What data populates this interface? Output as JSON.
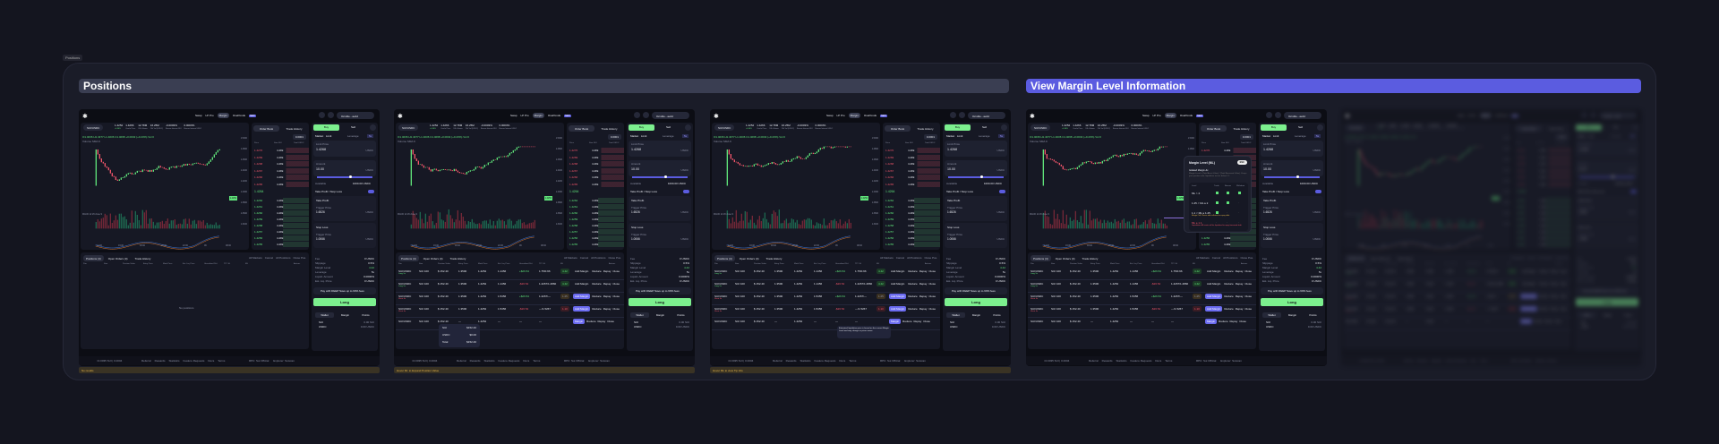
{
  "frame_label": "Positions",
  "sections": [
    {
      "title": "Positions"
    },
    {
      "title": "View Margin Level Information"
    }
  ],
  "app": {
    "nav": [
      "Swap",
      "LP Pro",
      "Margin",
      "OnePonds"
    ],
    "nav_badge": "NEW",
    "wallet": "0x1d2e...ae4d",
    "pair": "SUI/USDC",
    "pair_badge": "5x",
    "stats": [
      {
        "v": "1.4252",
        "l": "+0.56%"
      },
      {
        "v": "1.4266",
        "l": "Oracle Price"
      },
      {
        "v": "12.78M",
        "l": "24h Volume"
      },
      {
        "v": "16.25M",
        "l": "24h Vol (USDC)"
      },
      {
        "v": "-0.0003%",
        "l": "Borrow Interest SUI"
      },
      {
        "v": "0.0003%",
        "l": "Borrow Interest USDC"
      }
    ],
    "ohlc": "O1.4036 H1.4377 L1.4036 C1.4068 +0.0032 (+0.23%) Vol 0",
    "volume_label": "Volume SMA 9",
    "macd_label": "MACD 12 26 close 9",
    "price_axis": [
      "1.5000",
      "1.4800",
      "1.4600",
      "1.4400",
      "1.4200",
      "1.4000",
      "1.3800",
      "1.3600",
      "1.3400"
    ],
    "last_price": "1.4252",
    "time_axis": [
      "14:00",
      "16:00",
      "18:00",
      "20:00",
      "22:00",
      "06",
      "08:00"
    ],
    "orderbook": {
      "tabs": [
        "Order Book",
        "Trade History"
      ],
      "step": "0.0001",
      "cols": [
        "Price",
        "Size SUI",
        "Total USDC"
      ],
      "asks": [
        "1.4270",
        "1.4269",
        "1.4268",
        "1.4267",
        "1.4266",
        "1.4265"
      ],
      "mid": "1.4264",
      "bids": [
        "1.4262",
        "1.4261",
        "1.4260",
        "1.4259",
        "1.4258",
        "1.4257",
        "1.4256",
        "1.4255"
      ],
      "size": "4.28k"
    },
    "order": {
      "buy": "Buy",
      "sell": "Sell",
      "types": [
        "Market",
        "Limit"
      ],
      "leverage_label": "Leverage",
      "leverage": "5x",
      "limit_label": "Limit Price",
      "limit": "1.4268",
      "unit": "USDC",
      "amount_label": "Amount",
      "amount": "10.00",
      "available_label": "Available",
      "available": "1000.00 USDC",
      "tpsl_label": "Take Profit / Stop Loss",
      "tp": "Take Profit",
      "sl": "Stop Loss",
      "trigger": "Trigger Price",
      "tp_price": "1.6526",
      "sl_price": "1.0066",
      "summary": [
        [
          "Fee",
          "0 USDC"
        ],
        [
          "Slippage",
          "0.5%"
        ],
        [
          "Margin Level",
          "4.42"
        ],
        [
          "Leverage",
          "5x"
        ],
        [
          "Liquid. Amount",
          "0.0000%"
        ],
        [
          "Est. Liq. Price",
          "0 USDC"
        ]
      ],
      "promo": "Pay with DEEP Save up to 60% fees",
      "long": "Long",
      "acct_tabs": [
        "Wallet",
        "Margin",
        "Points"
      ],
      "acct": [
        [
          "SUI",
          "0.00 SUI"
        ],
        [
          "USDC",
          "0.00 USDC"
        ]
      ]
    },
    "bottom": {
      "tabs": [
        "Positions (4)",
        "Open Orders (4)",
        "Trade History"
      ],
      "actions": [
        "All Markets",
        "Cancel",
        "All Positions",
        "Close Pos."
      ],
      "cols": [
        "Pair",
        "Size",
        "Position Value",
        "Entry Price",
        "Mark Price",
        "Est. Liq. Price",
        "Unrealized PnL",
        "TP / SL",
        "ML",
        "Actions"
      ],
      "rows": [
        {
          "pair": "SUI/USDC",
          "side": "Long 5x",
          "size": "SUI 100",
          "value": "$ 152.40",
          "entry": "1.3500",
          "mark": "1.4252",
          "liq": "1.1456",
          "pnl": "+$26.54",
          "tpsl": "1.75/0.96",
          "ml": "4.42",
          "act": "Add Margin"
        },
        {
          "pair": "SUI/USDC",
          "side": "Long 5x",
          "size": "SUI 100",
          "value": "$ 152.40",
          "entry": "1.3500",
          "mark": "1.4252",
          "liq": "1.1456",
          "pnl": "-$26.54",
          "tpsl": "1.4267/1.2860",
          "ml": "4.42",
          "act": "Add Margin"
        },
        {
          "pair": "SUI/USDC",
          "side": "Short 5x",
          "size": "SUI 100",
          "value": "$ 152.40",
          "entry": "1.3500",
          "mark": "1.4252",
          "liq": "1.5456",
          "pnl": "+$26.54",
          "tpsl": "1.4267/—",
          "ml": "1.25",
          "act": "Add Margin"
        },
        {
          "pair": "SUI/USDC",
          "side": "Short 5x",
          "size": "SUI 100",
          "value": "$ 152.40",
          "entry": "1.3500",
          "mark": "1.4252",
          "liq": "1.5456",
          "pnl": "-$26.54",
          "tpsl": "—/1.5267",
          "ml": "1.10",
          "act": "Add Margin"
        },
        {
          "pair": "SUI/USDC",
          "side": "",
          "size": "SUI 100",
          "value": "$ 152.40",
          "entry": "—",
          "mark": "1.4252",
          "liq": "—",
          "pnl": "—",
          "tpsl": "—",
          "ml": "",
          "act": "Margin"
        }
      ],
      "row_btns": [
        "Reduce",
        "Repay",
        "Close"
      ],
      "empty": "No positions"
    },
    "popover": [
      [
        "SUI",
        "$152.40"
      ],
      [
        "USDC",
        "$0.00"
      ],
      [
        "Total",
        "$152.40"
      ]
    ],
    "tooltip": "Estimated liquidation price is based on the current Margin Level and may change as prices move.",
    "footer": {
      "status": "≈0.0035 SUI | 0.0004",
      "links": [
        "Referral",
        "Rewards",
        "Statistics",
        "Feature Requests",
        "Docs",
        "Terms"
      ],
      "rpc": "RPC: Sui Official",
      "explorer": "Explorer: Suiscan"
    }
  },
  "screen_notes": [
    "No results",
    "Hover Mr. to Expand Position Value",
    "Hover ML to view Tip Info"
  ],
  "modal": {
    "title": "Margin Level (ML)",
    "close": "ESC",
    "subtitle": "Isolated Margin Δx",
    "desc": "Margin Level = (Total Asset Value) / (Total Borrowed Value). Keeps your position safe; liquidation occurs below 1.1.",
    "cols": [
      "Level",
      "Trade",
      "Borrow",
      "Withdraw"
    ],
    "rows": [
      {
        "level": "ML > 2",
        "v": [
          true,
          true,
          true
        ],
        "note": ""
      },
      {
        "level": "1.25 < ML ≤ 2",
        "v": [
          true,
          true,
          false
        ],
        "note": ""
      },
      {
        "level": "1.1 < ML ≤ 1.25",
        "v": [
          true,
          false,
          false
        ],
        "note": "Margin Call: Please add collateral or repay debt"
      },
      {
        "level": "ML ≤ 1.1",
        "v": [
          false,
          false,
          false
        ],
        "note": "Liquidation: All assets will be liquidated to repay borrowed debt"
      }
    ]
  },
  "colors": {
    "accent": "#5b5ce0",
    "buy": "#5fe37a",
    "sell": "#f0556a",
    "long_button": "#7cf08e",
    "warning": "#e8b84a"
  }
}
